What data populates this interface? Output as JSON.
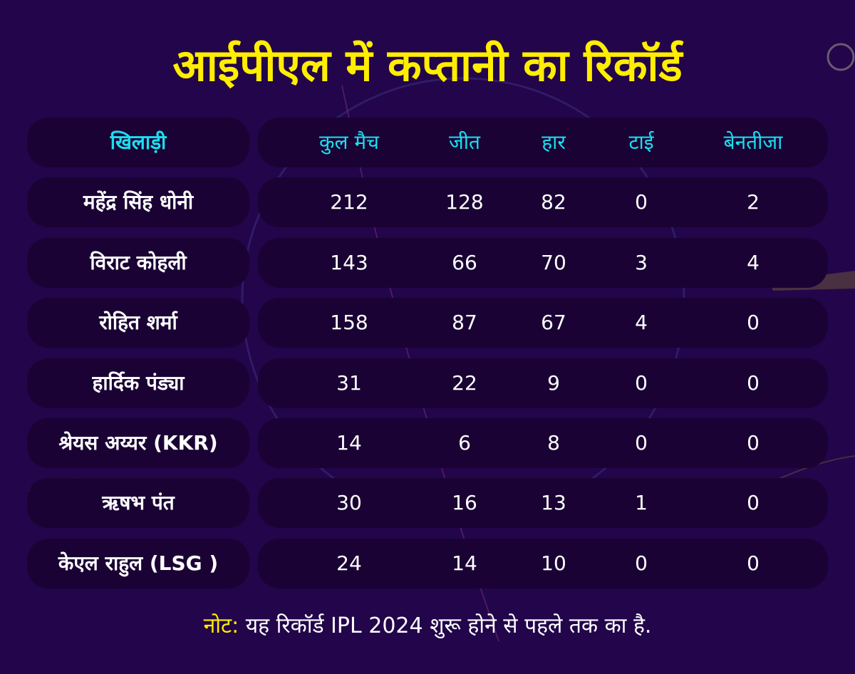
{
  "title": "आईपीएल में कप्तानी का रिकॉर्ड",
  "colors": {
    "background": "#22054a",
    "title": "#ffee00",
    "header_text": "#19e0f0",
    "row_fill": "#1a0334",
    "text": "#ffffff"
  },
  "chart_data": {
    "type": "table",
    "title": "आईपीएल में कप्तानी का रिकॉर्ड",
    "columns": [
      "खिलाड़ी",
      "कुल मैच",
      "जीत",
      "हार",
      "टाई",
      "बेनतीजा"
    ],
    "rows": [
      {
        "player": "महेंद्र सिंह धोनी",
        "values": [
          "212",
          "128",
          "82",
          "0",
          "2"
        ]
      },
      {
        "player": "विराट कोहली",
        "values": [
          "143",
          "66",
          "70",
          "3",
          "4"
        ]
      },
      {
        "player": "रोहित शर्मा",
        "values": [
          "158",
          "87",
          "67",
          "4",
          "0"
        ]
      },
      {
        "player": "हार्दिक पंड्या",
        "values": [
          "31",
          "22",
          "9",
          "0",
          "0"
        ]
      },
      {
        "player": "श्रेयस अय्यर (KKR)",
        "values": [
          "14",
          "6",
          "8",
          "0",
          "0"
        ]
      },
      {
        "player": "ऋषभ पंत",
        "values": [
          "30",
          "16",
          "13",
          "1",
          "0"
        ]
      },
      {
        "player": "केएल राहुल (LSG )",
        "values": [
          "24",
          "14",
          "10",
          "0",
          "0"
        ]
      }
    ]
  },
  "note": {
    "label": "नोट:",
    "text": " यह रिकॉर्ड IPL 2024 शुरू होने से पहले तक का है."
  }
}
